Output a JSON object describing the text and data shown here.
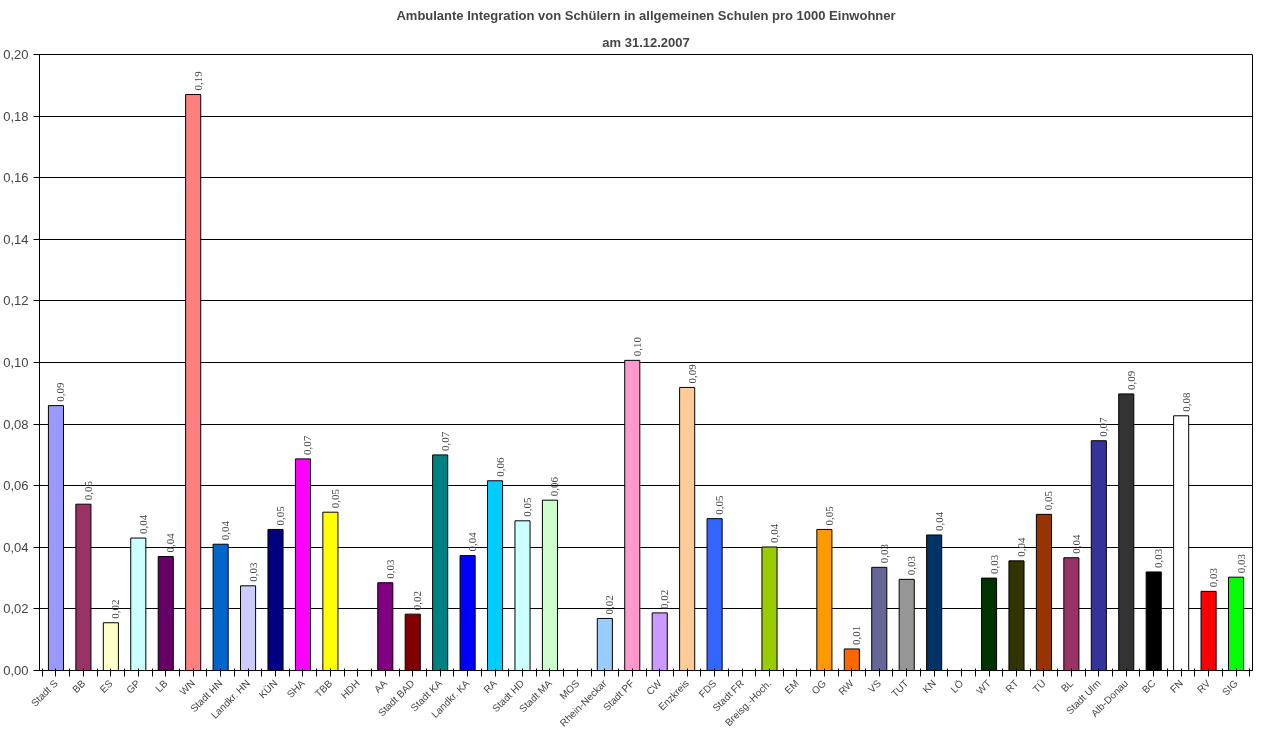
{
  "chart_data": {
    "type": "bar",
    "title": "Ambulante Integration von Schülern in allgemeinen Schulen pro 1000 Einwohner",
    "subtitle": "am 31.12.2007",
    "categories": [
      "Stadt S",
      "BB",
      "ES",
      "GP",
      "LB",
      "WN",
      "Stadt HN",
      "Landkr. HN",
      "KÜN",
      "SHA",
      "TBB",
      "HDH",
      "AA",
      "Stadt BAD",
      "Stadt KA",
      "Landkr. KA",
      "RA",
      "Stadt HD",
      "Stadt MA",
      "MOS",
      "Rhein-Neckar",
      "Stadt PF",
      "CW",
      "Enzkreis",
      "FDS",
      "Stadt FR",
      "Breisg.-Hoch.",
      "EM",
      "OG",
      "RW",
      "VS",
      "TUT",
      "KN",
      "LÖ",
      "WT",
      "RT",
      "TÜ",
      "BL",
      "Stadt Ulm",
      "Alb-Donau",
      "BC",
      "FN",
      "RV",
      "SIG"
    ],
    "values": [
      0.086,
      0.054,
      0.0155,
      0.043,
      0.037,
      0.187,
      0.041,
      0.0275,
      0.0458,
      0.0687,
      0.0514,
      null,
      0.0285,
      0.0183,
      0.07,
      0.0373,
      0.0616,
      0.0486,
      0.0553,
      null,
      0.0169,
      0.1007,
      0.0187,
      0.0919,
      0.0493,
      null,
      0.0401,
      null,
      0.0458,
      0.007,
      0.0335,
      0.0296,
      0.044,
      null,
      0.03,
      0.0356,
      0.0507,
      0.0366,
      0.0746,
      0.0898,
      0.032,
      0.0827,
      0.0257,
      0.0303
    ],
    "value_labels": [
      "0,09",
      "0,05",
      "0,02",
      "0,04",
      "0,04",
      "0,19",
      "0,04",
      "0,03",
      "0,05",
      "0,07",
      "0,05",
      null,
      "0,03",
      "0,02",
      "0,07",
      "0,04",
      "0,06",
      "0,05",
      "0,06",
      null,
      "0,02",
      "0,10",
      "0,02",
      "0,09",
      "0,05",
      null,
      "0,04",
      null,
      "0,05",
      "0,01",
      "0,03",
      "0,03",
      "0,04",
      null,
      "0,03",
      "0,04",
      "0,05",
      "0,04",
      "0,07",
      "0,09",
      "0,03",
      "0,08",
      "0,03",
      "0,03"
    ],
    "colors": [
      "#9999ff",
      "#993366",
      "#ffffcc",
      "#ccffff",
      "#660066",
      "#ff8080",
      "#0066cc",
      "#ccccff",
      "#000080",
      "#ff00ff",
      "#ffff00",
      "#00ffff",
      "#800080",
      "#800000",
      "#008080",
      "#0000ff",
      "#00ccff",
      "#ccffff",
      "#ccffcc",
      "#ffff99",
      "#99ccff",
      "#ff99cc",
      "#cc99ff",
      "#ffcc99",
      "#3366ff",
      "#33cccc",
      "#99cc00",
      "#ffcc00",
      "#ff9900",
      "#ff6600",
      "#666699",
      "#969696",
      "#003366",
      "#339966",
      "#003300",
      "#333300",
      "#993300",
      "#993366",
      "#333399",
      "#333333",
      "#000000",
      "#ffffff",
      "#ff0000",
      "#00ff00"
    ],
    "ylim": [
      0,
      0.2
    ],
    "yticks": [
      {
        "value": 0,
        "label": "0,00"
      },
      {
        "value": 0.02,
        "label": "0,02"
      },
      {
        "value": 0.04,
        "label": "0,04"
      },
      {
        "value": 0.06,
        "label": "0,06"
      },
      {
        "value": 0.08,
        "label": "0,08"
      },
      {
        "value": 0.1,
        "label": "0,10"
      },
      {
        "value": 0.12,
        "label": "0,12"
      },
      {
        "value": 0.14,
        "label": "0,14"
      },
      {
        "value": 0.16,
        "label": "0,16"
      },
      {
        "value": 0.18,
        "label": "0,18"
      },
      {
        "value": 0.2,
        "label": "0,20"
      }
    ],
    "grid": "y"
  }
}
